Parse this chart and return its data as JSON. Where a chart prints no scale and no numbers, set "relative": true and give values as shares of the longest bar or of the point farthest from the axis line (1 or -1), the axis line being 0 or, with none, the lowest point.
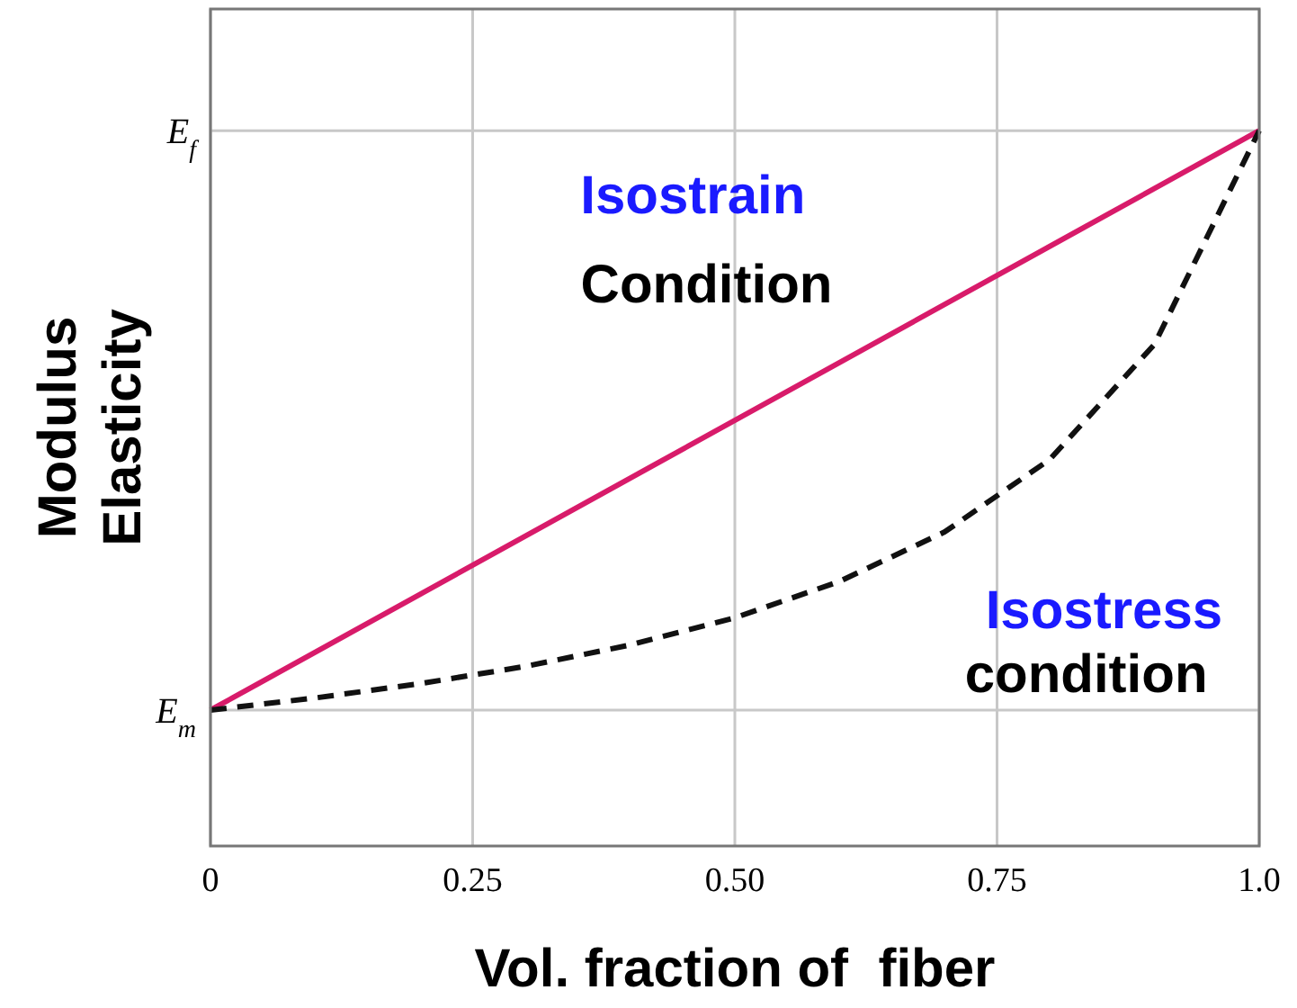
{
  "chart_data": {
    "type": "line",
    "xlabel": "Vol. fraction of  fiber",
    "ylabel": "Modulus\nElasticity",
    "x": [
      0,
      0.1,
      0.2,
      0.3,
      0.4,
      0.5,
      0.6,
      0.7,
      0.8,
      0.9,
      1
    ],
    "series": [
      {
        "color": "#d81b6a",
        "line_style": "solid",
        "x": [
          0,
          1
        ],
        "values": [
          0.19,
          1
        ]
      },
      {
        "color": "#111111",
        "line_style": "dashed",
        "values": [
          0.19,
          0.207,
          0.227,
          0.251,
          0.281,
          0.319,
          0.37,
          0.439,
          0.54,
          0.701,
          1
        ]
      }
    ],
    "xlim": [
      0,
      1
    ],
    "xticks": [
      0,
      0.25,
      {
        "value": 0.5,
        "label": "0.50"
      },
      0.75,
      {
        "value": 1,
        "label": "1.0"
      }
    ],
    "relative": true,
    "grid": true,
    "marker": "none",
    "annotations": [
      "E$_{m}$",
      "E$_{f}$",
      "Isostrain",
      "Condition",
      "Isostress",
      "condition"
    ]
  }
}
